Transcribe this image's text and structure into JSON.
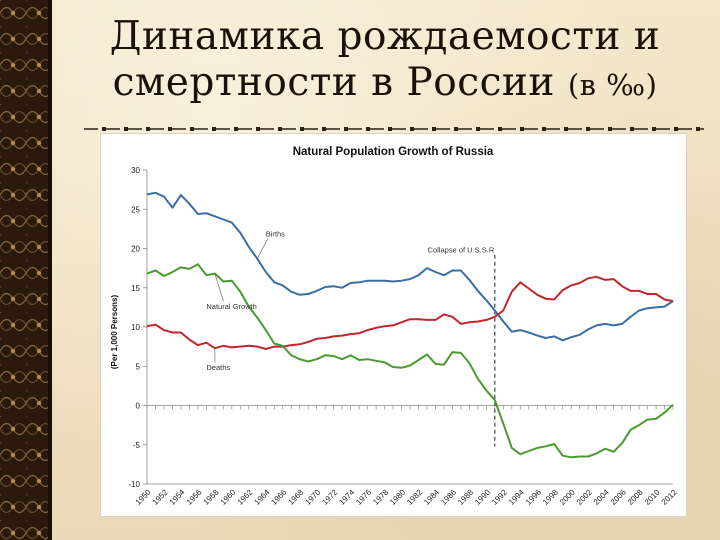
{
  "slide": {
    "title_line1": "Динамика рождаемости и",
    "title_line2": "смертности в России",
    "title_suffix": "(в ‰)"
  },
  "colors": {
    "births": "#3a6ea5",
    "deaths": "#c0272d",
    "natural_growth": "#4a9a2f",
    "background": "#efe2c4",
    "strip": "#2b1a0c"
  },
  "chart_data": {
    "type": "line",
    "title": "Natural Population Growth of Russia",
    "ylabel": "(Per 1,000 Persons)",
    "xlabel": "",
    "ylim": [
      -10,
      30
    ],
    "yticks": [
      -10,
      -5,
      0,
      5,
      10,
      15,
      20,
      25,
      30
    ],
    "xlim": [
      1950,
      2012
    ],
    "xtick_labels": [
      "1950",
      "1952",
      "1954",
      "1956",
      "1958",
      "1960",
      "1962",
      "1964",
      "1966",
      "1968",
      "1970",
      "1972",
      "1974",
      "1976",
      "1978",
      "1980",
      "1982",
      "1984",
      "1986",
      "1988",
      "1990",
      "1992",
      "1994",
      "1996",
      "1998",
      "2000",
      "2002",
      "2004",
      "2006",
      "2008",
      "2010",
      "2012"
    ],
    "grid": false,
    "annotations": [
      {
        "text": "Births",
        "x": 1964,
        "y": 21.5
      },
      {
        "text": "Natural Growth",
        "x": 1957,
        "y": 12.3
      },
      {
        "text": "Deaths",
        "x": 1957,
        "y": 4.5
      },
      {
        "text": "Collapse of U.S.S.R",
        "x": 1987,
        "y": 19.5
      }
    ],
    "collapse_year": 1991,
    "x": [
      1950,
      1951,
      1952,
      1953,
      1954,
      1955,
      1956,
      1957,
      1958,
      1959,
      1960,
      1961,
      1962,
      1963,
      1964,
      1965,
      1966,
      1967,
      1968,
      1969,
      1970,
      1971,
      1972,
      1973,
      1974,
      1975,
      1976,
      1977,
      1978,
      1979,
      1980,
      1981,
      1982,
      1983,
      1984,
      1985,
      1986,
      1987,
      1988,
      1989,
      1990,
      1991,
      1992,
      1993,
      1994,
      1995,
      1996,
      1997,
      1998,
      1999,
      2000,
      2001,
      2002,
      2003,
      2004,
      2005,
      2006,
      2007,
      2008,
      2009,
      2010,
      2011,
      2012
    ],
    "series": [
      {
        "name": "Births",
        "color_key": "births",
        "values": [
          26.9,
          27.1,
          26.6,
          25.2,
          26.8,
          25.7,
          24.4,
          24.5,
          24.1,
          23.7,
          23.3,
          22.0,
          20.2,
          18.7,
          17.0,
          15.7,
          15.3,
          14.5,
          14.1,
          14.2,
          14.6,
          15.1,
          15.2,
          15.0,
          15.6,
          15.7,
          15.9,
          15.9,
          15.9,
          15.8,
          15.9,
          16.1,
          16.6,
          17.5,
          17.0,
          16.6,
          17.2,
          17.2,
          16.0,
          14.6,
          13.4,
          12.1,
          10.7,
          9.4,
          9.6,
          9.3,
          8.9,
          8.6,
          8.8,
          8.3,
          8.7,
          9.0,
          9.7,
          10.2,
          10.4,
          10.2,
          10.4,
          11.3,
          12.1,
          12.4,
          12.5,
          12.6,
          13.3
        ]
      },
      {
        "name": "Deaths",
        "color_key": "deaths",
        "values": [
          10.1,
          10.3,
          9.6,
          9.3,
          9.3,
          8.4,
          7.7,
          8.0,
          7.3,
          7.6,
          7.4,
          7.5,
          7.6,
          7.5,
          7.2,
          7.5,
          7.5,
          7.7,
          7.8,
          8.1,
          8.5,
          8.6,
          8.8,
          8.9,
          9.1,
          9.2,
          9.6,
          9.9,
          10.1,
          10.2,
          10.6,
          11.0,
          11.0,
          10.9,
          10.9,
          11.6,
          11.3,
          10.4,
          10.6,
          10.7,
          10.9,
          11.3,
          12.1,
          14.5,
          15.7,
          14.9,
          14.1,
          13.6,
          13.5,
          14.7,
          15.3,
          15.6,
          16.2,
          16.4,
          16.0,
          16.1,
          15.2,
          14.6,
          14.6,
          14.2,
          14.2,
          13.5,
          13.3
        ]
      },
      {
        "name": "Natural Growth",
        "color_key": "natural_growth",
        "values": [
          16.8,
          17.2,
          16.5,
          17.0,
          17.6,
          17.4,
          18.0,
          16.6,
          16.8,
          15.8,
          15.9,
          14.5,
          12.6,
          11.2,
          9.6,
          7.9,
          7.6,
          6.4,
          5.9,
          5.6,
          5.9,
          6.4,
          6.3,
          5.9,
          6.4,
          5.8,
          5.9,
          5.7,
          5.5,
          4.9,
          4.8,
          5.1,
          5.8,
          6.5,
          5.3,
          5.2,
          6.8,
          6.7,
          5.4,
          3.4,
          1.9,
          0.7,
          -2.3,
          -5.4,
          -6.2,
          -5.8,
          -5.4,
          -5.2,
          -4.9,
          -6.4,
          -6.6,
          -6.5,
          -6.5,
          -6.1,
          -5.5,
          -5.9,
          -4.8,
          -3.1,
          -2.5,
          -1.8,
          -1.7,
          -0.9,
          0.1
        ]
      }
    ]
  }
}
